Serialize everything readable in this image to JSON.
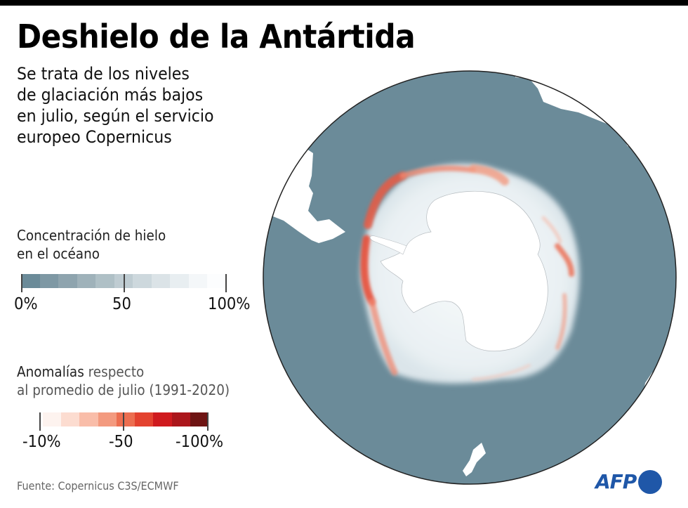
{
  "header": {
    "title": "Deshielo de la Antártida",
    "subtitle_lines": [
      "Se trata de los niveles",
      "de glaciación más bajos",
      "en julio, según el servicio",
      "europeo Copernicus"
    ]
  },
  "legend_concentration": {
    "title_lines": [
      "Concentración de hielo",
      "en el océano"
    ],
    "tick_labels": [
      "0%",
      "50",
      "100%"
    ],
    "colors": [
      "#6b8b99",
      "#7e98a4",
      "#8ea4ae",
      "#9fb2ba",
      "#afc0c6",
      "#bfccd2",
      "#cdd8dd",
      "#dbe3e7",
      "#e8eef1",
      "#f4f7f9",
      "#fcfdfe"
    ]
  },
  "legend_anomalies": {
    "title_bold": "Anomalías",
    "title_rest": " respecto",
    "title_line2": "al promedio de julio (1991-2020)",
    "tick_labels": [
      "-10%",
      "-50",
      "-100%"
    ],
    "colors": [
      "#fdf3ef",
      "#fcdcd0",
      "#f9bda9",
      "#f39a7f",
      "#ec6e50",
      "#e3422f",
      "#cf1a1e",
      "#ab161b",
      "#6e1413"
    ]
  },
  "map": {
    "ocean_color": "#6b8b99",
    "ice_color": "#eef3f6",
    "land_color": "#ffffff",
    "anomaly_color": "#e8533d",
    "outline_color": "#222222"
  },
  "footer": {
    "source": "Fuente: Copernicus C3S/ECMWF",
    "logo_text": "AFP",
    "logo_color": "#1f57a8"
  }
}
